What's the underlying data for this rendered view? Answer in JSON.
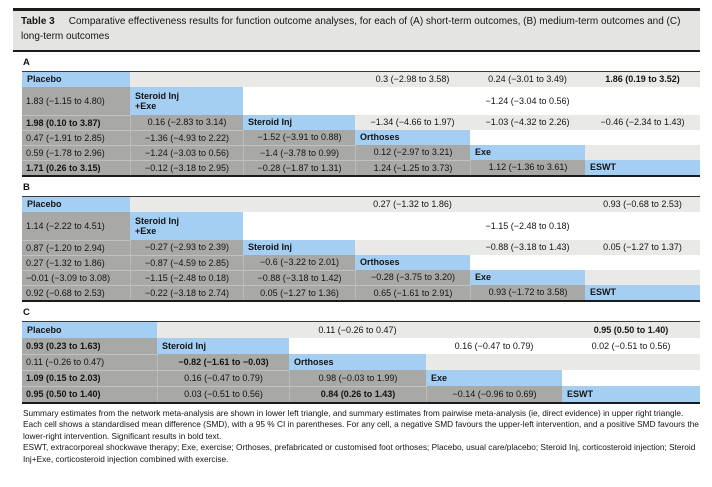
{
  "title": {
    "number": "Table 3",
    "caption": "Comparative effectiveness results for function outcome analyses, for each of (A) short-term outcomes, (B) medium-term outcomes and (C) long-term outcomes"
  },
  "colors": {
    "diagonal_blue": "#a4cef2",
    "network_gray": "#a8a8a6",
    "pairwise_stripe": "#e9e9e7",
    "title_band": "#e4e4e2"
  },
  "sections": [
    {
      "label": "A",
      "treatments": [
        "Placebo",
        "Steroid Inj\n+Exe",
        "Steroid Inj",
        "Orthoses",
        "Exe",
        "ESWT"
      ],
      "rows": [
        [
          "Placebo",
          "",
          "",
          "0.3 (−2.98 to 3.58)",
          "0.24 (−3.01 to 3.49)",
          "1.86 (0.19 to 3.52)"
        ],
        [
          "1.83 (−1.15 to 4.80)",
          "Steroid Inj\n+Exe",
          "",
          "",
          "−1.24 (−3.04 to 0.56)",
          ""
        ],
        [
          "1.98 (0.10 to 3.87)",
          "0.16 (−2.83 to 3.14)",
          "Steroid Inj",
          "−1.34 (−4.66 to 1.97)",
          "−1.03 (−4.32 to 2.26)",
          "−0.46 (−2.34 to 1.43)"
        ],
        [
          "0.47 (−1.91 to 2.85)",
          "−1.36 (−4.93 to 2.22)",
          "−1.52 (−3.91 to 0.88)",
          "Orthoses",
          "",
          ""
        ],
        [
          "0.59 (−1.78 to 2.96)",
          "−1.24 (−3.03 to 0.56)",
          "−1.4 (−3.78 to 0.99)",
          "0.12 (−2.97 to 3.21)",
          "Exe",
          ""
        ],
        [
          "1.71 (0.26 to 3.15)",
          "−0.12 (−3.18 to 2.95)",
          "−0.28 (−1.87 to 1.31)",
          "1.24 (−1.25 to 3.73)",
          "1.12 (−1.36 to 3.61)",
          "ESWT"
        ]
      ],
      "significant": [
        [
          0,
          5
        ],
        [
          2,
          0
        ],
        [
          5,
          0
        ]
      ]
    },
    {
      "label": "B",
      "treatments": [
        "Placebo",
        "Steroid Inj\n+Exe",
        "Steroid Inj",
        "Orthoses",
        "Exe",
        "ESWT"
      ],
      "rows": [
        [
          "Placebo",
          "",
          "",
          "0.27 (−1.32 to 1.86)",
          "",
          "0.93 (−0.68 to 2.53)"
        ],
        [
          "1.14 (−2.22 to 4.51)",
          "Steroid Inj\n+Exe",
          "",
          "",
          "−1.15 (−2.48 to 0.18)",
          ""
        ],
        [
          "0.87 (−1.20 to 2.94)",
          "−0.27 (−2.93 to 2.39)",
          "Steroid Inj",
          "",
          "−0.88 (−3.18 to 1.43)",
          "0.05 (−1.27 to 1.37)"
        ],
        [
          "0.27 (−1.32 to 1.86)",
          "−0.87 (−4.59 to 2.85)",
          "−0.6 (−3.22 to 2.01)",
          "Orthoses",
          "",
          ""
        ],
        [
          "−0.01 (−3.09 to 3.08)",
          "−1.15 (−2.48 to 0.18)",
          "−0.88 (−3.18 to 1.42)",
          "−0.28 (−3.75 to 3.20)",
          "Exe",
          ""
        ],
        [
          "0.92 (−0.68 to 2.53)",
          "−0.22 (−3.18 to 2.74)",
          "0.05 (−1.27 to 1.36)",
          "0.65 (−1.61 to 2.91)",
          "0.93 (−1.72 to 3.58)",
          "ESWT"
        ]
      ],
      "significant": []
    },
    {
      "label": "C",
      "treatments": [
        "Placebo",
        "Steroid Inj",
        "Orthoses",
        "Exe",
        "ESWT"
      ],
      "rows": [
        [
          "Placebo",
          "",
          "0.11 (−0.26 to 0.47)",
          "",
          "0.95 (0.50 to 1.40)"
        ],
        [
          "0.93 (0.23 to 1.63)",
          "Steroid Inj",
          "",
          "0.16 (−0.47 to 0.79)",
          "0.02 (−0.51 to 0.56)"
        ],
        [
          "0.11 (−0.26 to 0.47)",
          "−0.82 (−1.61 to −0.03)",
          "Orthoses",
          "",
          ""
        ],
        [
          "1.09 (0.15 to 2.03)",
          "0.16 (−0.47 to 0.79)",
          "0.98 (−0.03 to 1.99)",
          "Exe",
          ""
        ],
        [
          "0.95 (0.50 to 1.40)",
          "0.03 (−0.51 to 0.56)",
          "0.84 (0.26 to 1.43)",
          "−0.14 (−0.96 to 0.69)",
          "ESWT"
        ]
      ],
      "significant": [
        [
          0,
          4
        ],
        [
          1,
          0
        ],
        [
          2,
          1
        ],
        [
          3,
          0
        ],
        [
          4,
          0
        ],
        [
          4,
          2
        ]
      ]
    }
  ],
  "footnotes": {
    "summary": "Summary estimates from the network meta-analysis are shown in lower left triangle, and summary estimates from pairwise meta-analysis (ie, direct evidence) in upper right triangle. Each cell shows a standardised mean difference (SMD), with a 95 % CI in parentheses. For any cell, a negative SMD favours the upper-left intervention, and a positive SMD favours the lower-right intervention. Significant results in bold text.",
    "abbreviations": "ESWT, extracorporeal shockwave therapy; Exe, exercise; Orthoses, prefabricated or customised foot orthoses; Placebo, usual care/placebo; Steroid Inj, corticosteroid injection; Steroid Inj+Exe, corticosteroid injection combined with exercise."
  }
}
